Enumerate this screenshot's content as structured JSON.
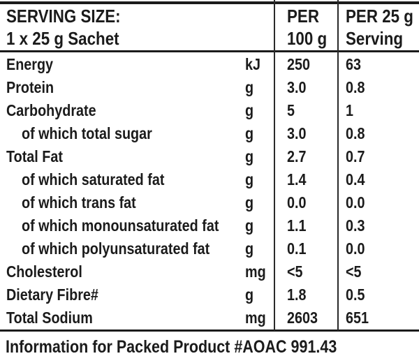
{
  "panel": {
    "colors": {
      "text": "#1b1b1b",
      "rule": "#1b1b1b",
      "background": "#ffffff"
    },
    "header": {
      "col1_line1": "SERVING SIZE:",
      "col1_line2": "1 x 25 g Sachet",
      "col2_line1": "PER",
      "col2_line2": "100 g",
      "col3_line1": "PER 25 g",
      "col3_line2": "Serving"
    },
    "rows": [
      {
        "label": "Energy",
        "indent": false,
        "unit": "kJ",
        "per100": "250",
        "per25": "63"
      },
      {
        "label": "Protein",
        "indent": false,
        "unit": "g",
        "per100": "3.0",
        "per25": "0.8"
      },
      {
        "label": "Carbohydrate",
        "indent": false,
        "unit": "g",
        "per100": "5",
        "per25": "1"
      },
      {
        "label": "of which total sugar",
        "indent": true,
        "unit": "g",
        "per100": "3.0",
        "per25": "0.8"
      },
      {
        "label": "Total Fat",
        "indent": false,
        "unit": "g",
        "per100": "2.7",
        "per25": "0.7"
      },
      {
        "label": "of which saturated fat",
        "indent": true,
        "unit": "g",
        "per100": "1.4",
        "per25": "0.4"
      },
      {
        "label": "of which trans fat",
        "indent": true,
        "unit": "g",
        "per100": "0.0",
        "per25": "0.0"
      },
      {
        "label": "of which monounsaturated fat",
        "indent": true,
        "unit": "g",
        "per100": "1.1",
        "per25": "0.3"
      },
      {
        "label": "of which polyunsaturated fat",
        "indent": true,
        "unit": "g",
        "per100": "0.1",
        "per25": "0.0"
      },
      {
        "label": "Cholesterol",
        "indent": false,
        "unit": "mg",
        "per100": "<5",
        "per25": "<5"
      },
      {
        "label": "Dietary Fibre#",
        "indent": false,
        "unit": "g",
        "per100": "1.8",
        "per25": "0.5"
      },
      {
        "label": "Total Sodium",
        "indent": false,
        "unit": "mg",
        "per100": "2603",
        "per25": "651"
      }
    ],
    "footer": "Information for Packed Product #AOAC 991.43"
  }
}
